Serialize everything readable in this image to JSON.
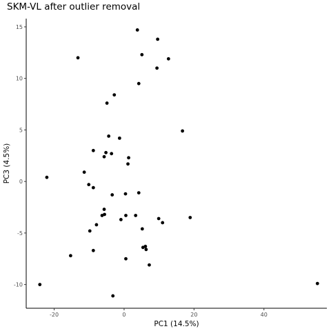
{
  "chart_data": {
    "type": "scatter",
    "title": "SKM-VL after outlier removal",
    "xlabel": "PC1 (14.5%)",
    "ylabel": "PC3 (4.5%)",
    "xlim": [
      -28,
      58
    ],
    "ylim": [
      -12.3,
      15.8
    ],
    "xticks": [
      -20,
      0,
      20,
      40
    ],
    "yticks": [
      -10,
      -5,
      0,
      5,
      10,
      15
    ],
    "xtick_labels": [
      "-20",
      "0",
      "20",
      "40"
    ],
    "ytick_labels": [
      "-10",
      "-5",
      "0",
      "5",
      "10",
      "15"
    ],
    "grid": false,
    "legend": "none",
    "point_color": "#000000",
    "points": [
      {
        "x": 3.8,
        "y": 14.7
      },
      {
        "x": 9.6,
        "y": 13.8
      },
      {
        "x": 5.1,
        "y": 12.3
      },
      {
        "x": -13.2,
        "y": 12.0
      },
      {
        "x": 12.7,
        "y": 11.9
      },
      {
        "x": 9.4,
        "y": 11.0
      },
      {
        "x": 4.2,
        "y": 9.5
      },
      {
        "x": -2.8,
        "y": 8.4
      },
      {
        "x": -4.9,
        "y": 7.6
      },
      {
        "x": 16.7,
        "y": 4.9
      },
      {
        "x": -4.4,
        "y": 4.4
      },
      {
        "x": -1.3,
        "y": 4.2
      },
      {
        "x": -8.8,
        "y": 3.0
      },
      {
        "x": -5.2,
        "y": 2.8
      },
      {
        "x": -3.6,
        "y": 2.7
      },
      {
        "x": -5.7,
        "y": 2.4
      },
      {
        "x": 1.3,
        "y": 2.3
      },
      {
        "x": 1.1,
        "y": 1.7
      },
      {
        "x": -11.4,
        "y": 0.9
      },
      {
        "x": -22.1,
        "y": 0.4
      },
      {
        "x": -10.1,
        "y": -0.3
      },
      {
        "x": -8.8,
        "y": -0.6
      },
      {
        "x": 0.4,
        "y": -1.2
      },
      {
        "x": 4.2,
        "y": -1.1
      },
      {
        "x": -3.4,
        "y": -1.3
      },
      {
        "x": -5.7,
        "y": -2.7
      },
      {
        "x": -6.3,
        "y": -3.3
      },
      {
        "x": -5.6,
        "y": -3.2
      },
      {
        "x": 0.5,
        "y": -3.3
      },
      {
        "x": 3.3,
        "y": -3.3
      },
      {
        "x": -0.9,
        "y": -3.7
      },
      {
        "x": 9.9,
        "y": -3.6
      },
      {
        "x": 11.0,
        "y": -4.0
      },
      {
        "x": 18.9,
        "y": -3.5
      },
      {
        "x": -7.9,
        "y": -4.2
      },
      {
        "x": 5.2,
        "y": -4.6
      },
      {
        "x": -9.8,
        "y": -4.8
      },
      {
        "x": 5.4,
        "y": -6.4
      },
      {
        "x": 6.1,
        "y": -6.3
      },
      {
        "x": 6.3,
        "y": -6.6
      },
      {
        "x": -8.8,
        "y": -6.7
      },
      {
        "x": -15.3,
        "y": -7.2
      },
      {
        "x": 0.5,
        "y": -7.5
      },
      {
        "x": 7.2,
        "y": -8.1
      },
      {
        "x": -24.1,
        "y": -10.0
      },
      {
        "x": 55.3,
        "y": -9.9
      },
      {
        "x": -3.2,
        "y": -11.1
      }
    ]
  }
}
